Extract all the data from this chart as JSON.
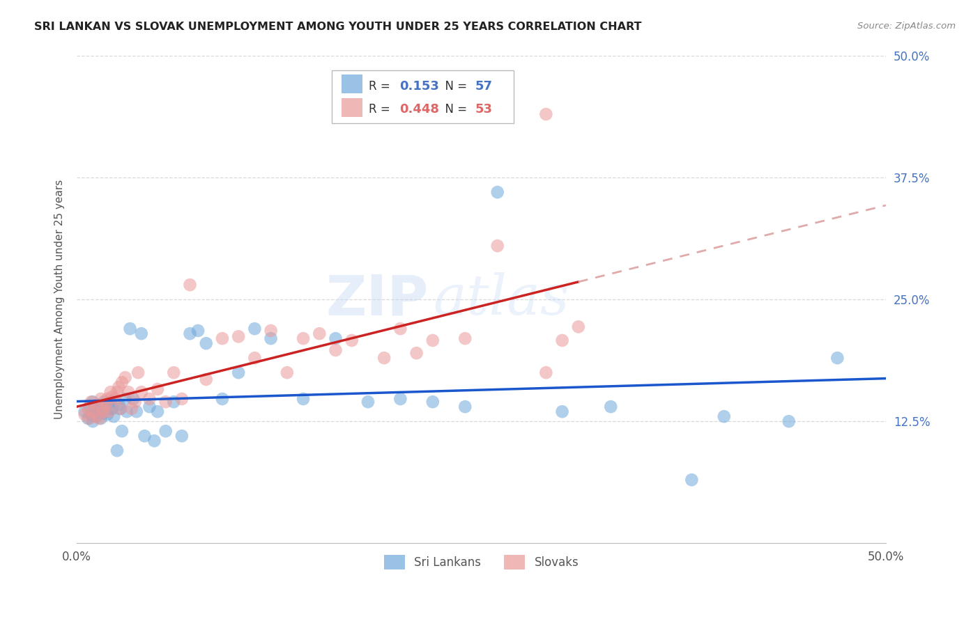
{
  "title": "SRI LANKAN VS SLOVAK UNEMPLOYMENT AMONG YOUTH UNDER 25 YEARS CORRELATION CHART",
  "source": "Source: ZipAtlas.com",
  "ylabel": "Unemployment Among Youth under 25 years",
  "xlim": [
    0.0,
    0.5
  ],
  "ylim": [
    0.0,
    0.5
  ],
  "background_color": "#ffffff",
  "grid_color": "#d0d0d0",
  "watermark_text": "ZIPatlas",
  "sri_lankans_R": 0.153,
  "sri_lankans_N": 57,
  "slovaks_R": 0.448,
  "slovaks_N": 53,
  "sri_lanka_color": "#6fa8dc",
  "slovak_color": "#ea9999",
  "sri_lanka_line_color": "#1a56cc",
  "slovak_line_color": "#cc2222",
  "slovak_dash_color": "#e0aaaa",
  "sri_lankans_x": [
    0.005,
    0.007,
    0.008,
    0.009,
    0.01,
    0.01,
    0.011,
    0.012,
    0.013,
    0.014,
    0.015,
    0.016,
    0.016,
    0.017,
    0.018,
    0.019,
    0.02,
    0.021,
    0.022,
    0.023,
    0.025,
    0.026,
    0.027,
    0.028,
    0.03,
    0.031,
    0.033,
    0.035,
    0.037,
    0.04,
    0.042,
    0.045,
    0.048,
    0.05,
    0.055,
    0.06,
    0.065,
    0.07,
    0.075,
    0.08,
    0.09,
    0.1,
    0.11,
    0.12,
    0.14,
    0.16,
    0.18,
    0.2,
    0.22,
    0.24,
    0.26,
    0.3,
    0.33,
    0.38,
    0.4,
    0.44,
    0.47
  ],
  "sri_lankans_y": [
    0.135,
    0.128,
    0.14,
    0.132,
    0.145,
    0.125,
    0.138,
    0.13,
    0.142,
    0.136,
    0.128,
    0.133,
    0.138,
    0.145,
    0.14,
    0.132,
    0.138,
    0.145,
    0.138,
    0.13,
    0.095,
    0.142,
    0.138,
    0.115,
    0.148,
    0.135,
    0.22,
    0.148,
    0.135,
    0.215,
    0.11,
    0.14,
    0.105,
    0.135,
    0.115,
    0.145,
    0.11,
    0.215,
    0.218,
    0.205,
    0.148,
    0.175,
    0.22,
    0.21,
    0.148,
    0.21,
    0.145,
    0.148,
    0.145,
    0.14,
    0.36,
    0.135,
    0.14,
    0.065,
    0.13,
    0.125,
    0.19
  ],
  "slovaks_x": [
    0.005,
    0.007,
    0.008,
    0.009,
    0.01,
    0.012,
    0.013,
    0.014,
    0.015,
    0.016,
    0.017,
    0.018,
    0.019,
    0.02,
    0.021,
    0.022,
    0.024,
    0.025,
    0.026,
    0.027,
    0.028,
    0.03,
    0.032,
    0.034,
    0.036,
    0.038,
    0.04,
    0.045,
    0.05,
    0.055,
    0.06,
    0.065,
    0.07,
    0.08,
    0.09,
    0.1,
    0.11,
    0.12,
    0.13,
    0.14,
    0.15,
    0.16,
    0.17,
    0.19,
    0.2,
    0.21,
    0.22,
    0.24,
    0.26,
    0.29,
    0.3,
    0.29,
    0.31
  ],
  "slovaks_y": [
    0.132,
    0.138,
    0.128,
    0.145,
    0.135,
    0.13,
    0.142,
    0.128,
    0.148,
    0.138,
    0.135,
    0.142,
    0.148,
    0.135,
    0.155,
    0.15,
    0.148,
    0.155,
    0.16,
    0.138,
    0.165,
    0.17,
    0.155,
    0.138,
    0.145,
    0.175,
    0.155,
    0.148,
    0.158,
    0.145,
    0.175,
    0.148,
    0.265,
    0.168,
    0.21,
    0.212,
    0.19,
    0.218,
    0.175,
    0.21,
    0.215,
    0.198,
    0.208,
    0.19,
    0.22,
    0.195,
    0.208,
    0.21,
    0.305,
    0.44,
    0.208,
    0.175,
    0.222
  ]
}
